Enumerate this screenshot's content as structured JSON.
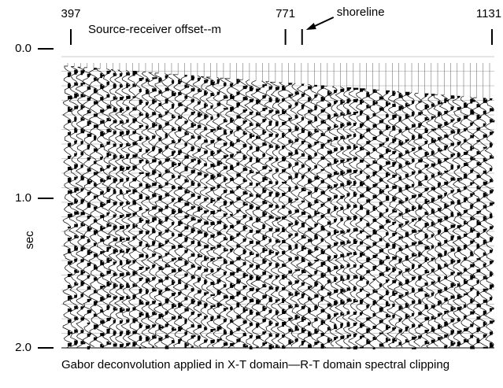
{
  "chart_data": {
    "type": "seismic",
    "title": "Source-receiver offset--m",
    "ylabel": "sec",
    "xlim": [
      397,
      1131
    ],
    "xticks": [
      397,
      771,
      1131
    ],
    "ylim": [
      0,
      2
    ],
    "yticks": [
      {
        "value": 0,
        "label": "0.0"
      },
      {
        "value": 1,
        "label": "1.0"
      },
      {
        "value": 2,
        "label": "2.0"
      }
    ],
    "annotations": [
      {
        "text": "shoreline",
        "x": 800
      }
    ],
    "caption": "Gabor deconvolution applied in X-T domain—R-T domain spectral clipping",
    "color": "#000000"
  }
}
